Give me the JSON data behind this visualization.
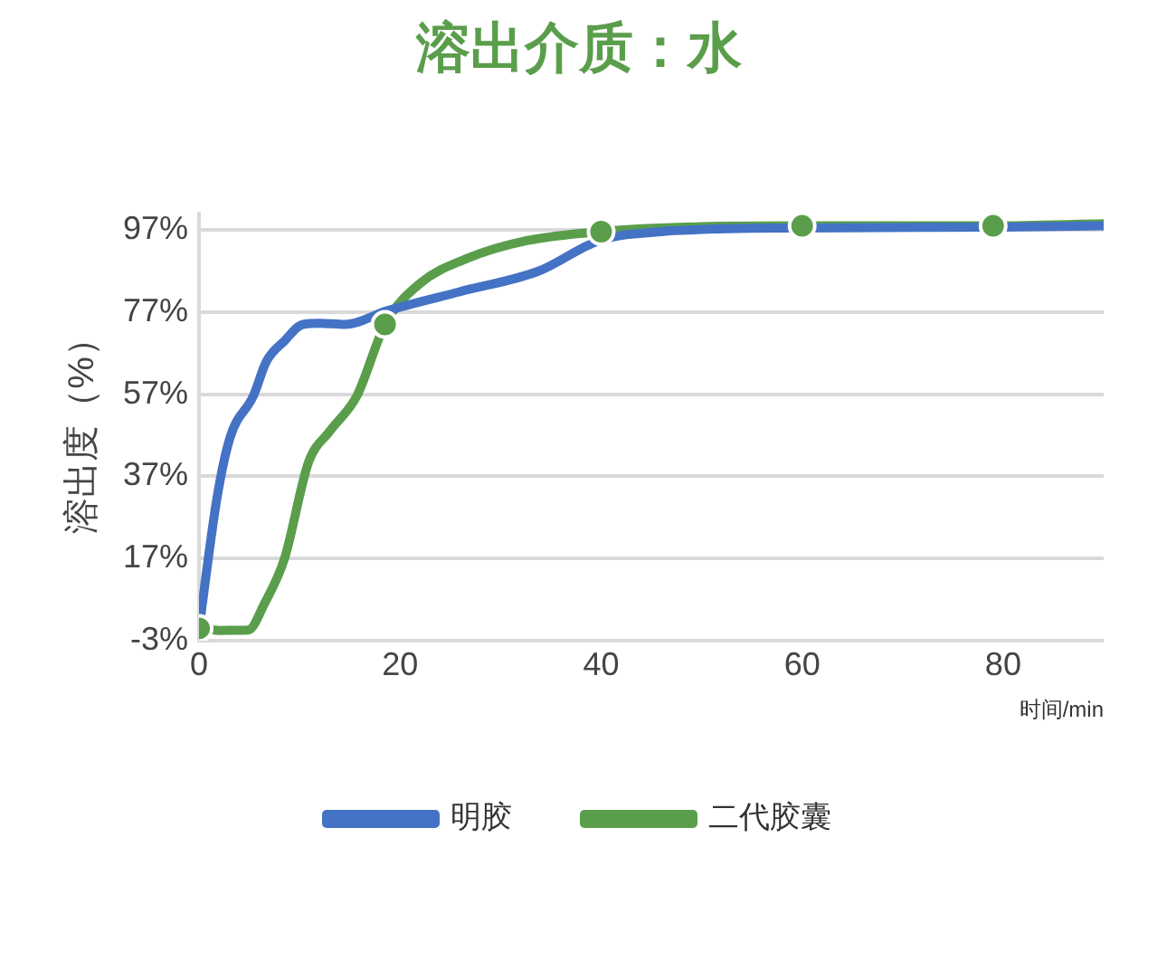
{
  "chart_data": {
    "type": "line",
    "title": "溶出介质：水",
    "xlabel": "时间/min",
    "ylabel": "溶出度（%）",
    "xlim": [
      0,
      90
    ],
    "xticks": [
      0,
      20,
      40,
      60,
      80
    ],
    "ylim": [
      -3,
      101
    ],
    "yticks": [
      {
        "value": -3,
        "label": "-3%"
      },
      {
        "value": 17,
        "label": "17%"
      },
      {
        "value": 37,
        "label": "37%"
      },
      {
        "value": 57,
        "label": "57%"
      },
      {
        "value": 77,
        "label": "77%"
      },
      {
        "value": 97,
        "label": "97%"
      }
    ],
    "grid": "y",
    "legend": "bottom",
    "line_style": "solid",
    "series": [
      {
        "name": "明胶",
        "color": "#4472c4",
        "marker": "none",
        "x": [
          0,
          1.8,
          3.1,
          5.4,
          6.7,
          8.5,
          10.3,
          12,
          14.5,
          18.8,
          26,
          33.8,
          39.8,
          46,
          60,
          80,
          90
        ],
        "values": [
          0,
          32,
          46.6,
          56.6,
          65,
          70,
          74,
          74.3,
          74,
          77.4,
          82,
          87,
          94.4,
          96.6,
          97.5,
          97.7,
          98
        ]
      },
      {
        "name": "二代胶囊",
        "color": "#5a9e4b",
        "marker": "none",
        "x": [
          0,
          2,
          4.9,
          6.5,
          8.5,
          10.9,
          13,
          15.7,
          18.5,
          22,
          26.6,
          32.6,
          40,
          50,
          60,
          79,
          90
        ],
        "values": [
          0,
          -0.5,
          -0.4,
          6,
          17,
          40.5,
          48,
          56.6,
          74,
          84,
          90,
          94.4,
          96.6,
          97.8,
          98,
          98,
          98.5
        ]
      },
      {
        "type": "scatter",
        "color": "#5a9e4b",
        "marker": "circle",
        "x": [
          0,
          18.5,
          40,
          60,
          79
        ],
        "values": [
          0,
          74,
          96.6,
          98,
          98
        ]
      }
    ]
  }
}
